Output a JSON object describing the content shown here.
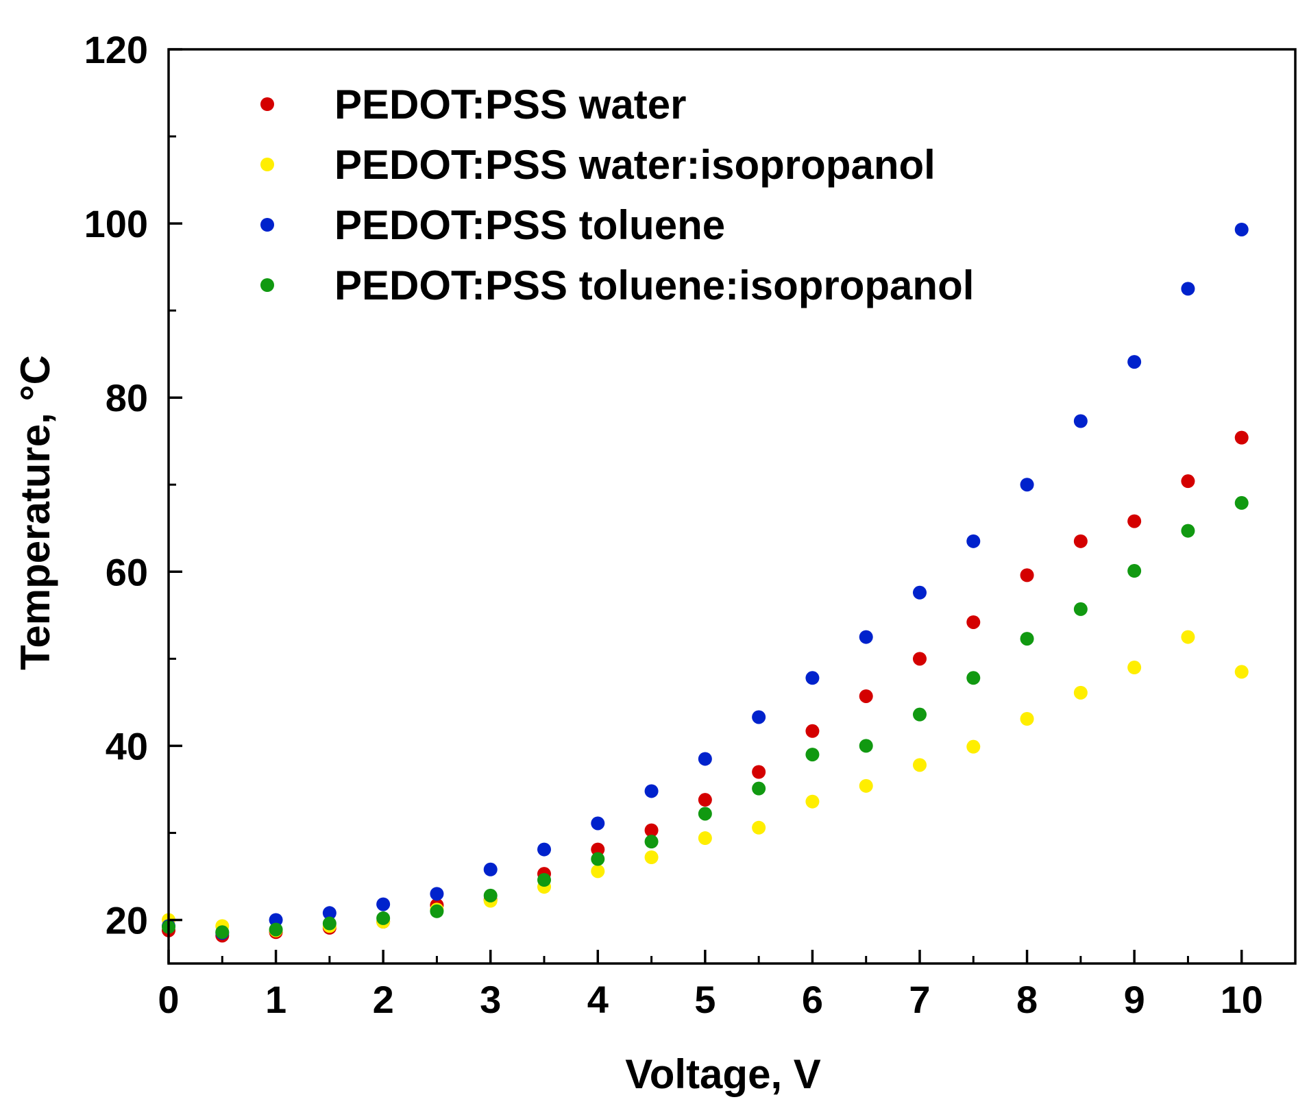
{
  "chart_data": {
    "type": "scatter",
    "title": "",
    "xlabel": "Voltage, V",
    "ylabel": "Temperature, °C",
    "xlim": [
      0,
      10.5
    ],
    "ylim": [
      15,
      120
    ],
    "x_ticks": [
      0,
      1,
      2,
      3,
      4,
      5,
      6,
      7,
      8,
      9,
      10
    ],
    "x_tick_labels": [
      "0",
      "1",
      "2",
      "3",
      "4",
      "5",
      "6",
      "7",
      "8",
      "9",
      "10"
    ],
    "y_ticks": [
      20,
      40,
      60,
      80,
      100,
      120
    ],
    "y_tick_labels": [
      "20",
      "40",
      "60",
      "80",
      "100",
      "120"
    ],
    "grid": false,
    "legend_position": "top-left",
    "x": [
      0,
      0.5,
      1,
      1.5,
      2,
      2.5,
      3,
      3.5,
      4,
      4.5,
      5,
      5.5,
      6,
      6.5,
      7,
      7.5,
      8,
      8.5,
      9,
      9.5,
      10
    ],
    "series": [
      {
        "name": "PEDOT:PSS water",
        "color": "#d40000",
        "values": [
          18.8,
          18.2,
          18.6,
          19.1,
          19.8,
          21.7,
          22.3,
          25.3,
          28.1,
          30.3,
          33.8,
          37.0,
          41.7,
          45.7,
          50.0,
          54.2,
          59.6,
          63.5,
          65.8,
          70.4,
          75.4
        ]
      },
      {
        "name": "PEDOT:PSS water:isopropanol",
        "color": "#ffee00",
        "values": [
          20.0,
          19.3,
          18.8,
          19.3,
          19.8,
          21.2,
          22.2,
          23.8,
          25.6,
          27.2,
          29.4,
          30.6,
          33.6,
          35.4,
          37.8,
          39.9,
          43.1,
          46.1,
          49.0,
          52.5,
          48.5
        ]
      },
      {
        "name": "PEDOT:PSS toluene",
        "color": "#0022cc",
        "values": [
          19.3,
          18.5,
          20.0,
          20.8,
          21.8,
          23.0,
          25.8,
          28.1,
          31.1,
          34.8,
          38.5,
          43.3,
          47.8,
          52.5,
          57.6,
          63.5,
          70.0,
          77.3,
          84.1,
          92.5,
          99.3
        ]
      },
      {
        "name": "PEDOT:PSS toluene:isopropanol",
        "color": "#119911",
        "values": [
          19.2,
          18.6,
          18.9,
          19.6,
          20.2,
          21.0,
          22.8,
          24.6,
          27.0,
          29.0,
          32.2,
          35.1,
          39.0,
          40.0,
          43.6,
          47.8,
          52.3,
          55.7,
          60.1,
          64.7,
          67.9
        ]
      }
    ]
  }
}
